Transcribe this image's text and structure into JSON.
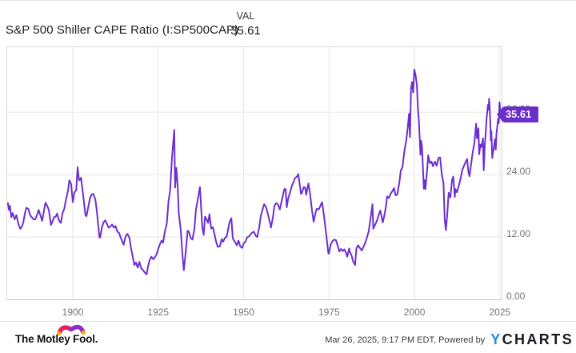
{
  "header": {
    "title": "S&P 500 Shiller CAPE Ratio (I:SP500CAP)",
    "val_label": "VAL",
    "val_value": "35.61"
  },
  "badge": {
    "value": "35.61",
    "color": "#6a2fc9"
  },
  "footer": {
    "brand": "The Motley Fool.",
    "timestamp": "Mar 26, 2025, 9:17 PM EDT",
    "powered_by": "Powered by",
    "ycharts_y": "Y",
    "ycharts_rest": "CHARTS"
  },
  "colors": {
    "line": "#6c2fd0",
    "badge": "#6a2fc9",
    "grid": "#e6e6e6",
    "axis_text": "#757575",
    "ycharts_blue": "#1e8fe3",
    "mf_cap_left": "#e61e5c",
    "mf_cap_right": "#8a30c9",
    "mf_bells": "#ffaf00"
  },
  "chart_data": {
    "type": "line",
    "title": "S&P 500 Shiller CAPE Ratio (I:SP500CAP)",
    "series_name": "S&P 500 Shiller CAPE Ratio",
    "line_color": "#6c2fd0",
    "grid": true,
    "legend": "none",
    "xlim": [
      1880.8,
      2025.5
    ],
    "ylim": [
      0,
      48.5
    ],
    "x_ticks": [
      1900,
      1925,
      1950,
      1975,
      2000,
      2025
    ],
    "x_tick_labels": [
      "1900",
      "1925",
      "1950",
      "1975",
      "2000",
      "2025"
    ],
    "y_ticks": [
      36,
      24,
      12,
      0
    ],
    "y_tick_labels": [
      "36.00",
      "24.00",
      "12.00",
      "0.00"
    ],
    "last_value": 35.61,
    "points": [
      [
        1881,
        18.5
      ],
      [
        1881.3,
        17.2
      ],
      [
        1881.6,
        18.0
      ],
      [
        1882,
        15.8
      ],
      [
        1882.4,
        16.6
      ],
      [
        1883,
        15.4
      ],
      [
        1883.5,
        16.2
      ],
      [
        1884,
        14.7
      ],
      [
        1884.6,
        13.6
      ],
      [
        1885,
        13.8
      ],
      [
        1885.5,
        14.8
      ],
      [
        1886,
        16.6
      ],
      [
        1886.4,
        17.6
      ],
      [
        1887,
        17.4
      ],
      [
        1887.5,
        16.2
      ],
      [
        1888,
        15.8
      ],
      [
        1888.5,
        15.4
      ],
      [
        1889,
        15.4
      ],
      [
        1889.5,
        16.2
      ],
      [
        1890,
        17.2
      ],
      [
        1890.7,
        15.8
      ],
      [
        1891,
        15.1
      ],
      [
        1891.5,
        16.8
      ],
      [
        1892,
        18.6
      ],
      [
        1892.5,
        18.0
      ],
      [
        1893,
        17.2
      ],
      [
        1893.6,
        14.3
      ],
      [
        1894,
        14.9
      ],
      [
        1894.5,
        15.8
      ],
      [
        1895,
        15.9
      ],
      [
        1895.4,
        16.5
      ],
      [
        1896,
        15.1
      ],
      [
        1896.5,
        14.7
      ],
      [
        1897,
        16.6
      ],
      [
        1897.5,
        17.4
      ],
      [
        1898,
        19.2
      ],
      [
        1898.6,
        20.9
      ],
      [
        1899,
        22.9
      ],
      [
        1899.5,
        22.2
      ],
      [
        1900,
        18.7
      ],
      [
        1900.5,
        20.6
      ],
      [
        1901,
        21.0
      ],
      [
        1901.4,
        25.4
      ],
      [
        1901.8,
        23.0
      ],
      [
        1902,
        22.9
      ],
      [
        1902.4,
        23.4
      ],
      [
        1903,
        20.2
      ],
      [
        1903.7,
        16.2
      ],
      [
        1904,
        16.0
      ],
      [
        1904.6,
        18.0
      ],
      [
        1905,
        19.4
      ],
      [
        1905.5,
        20.2
      ],
      [
        1906,
        20.3
      ],
      [
        1906.6,
        19.2
      ],
      [
        1907,
        17.2
      ],
      [
        1907.8,
        11.9
      ],
      [
        1908,
        11.9
      ],
      [
        1908.5,
        13.8
      ],
      [
        1909,
        14.8
      ],
      [
        1909.5,
        15.2
      ],
      [
        1910,
        14.5
      ],
      [
        1910.5,
        13.8
      ],
      [
        1911,
        14.0
      ],
      [
        1911.5,
        14.4
      ],
      [
        1912,
        13.8
      ],
      [
        1912.5,
        14.1
      ],
      [
        1913,
        13.1
      ],
      [
        1913.6,
        12.7
      ],
      [
        1914,
        11.9
      ],
      [
        1914.9,
        10.5
      ],
      [
        1915,
        10.9
      ],
      [
        1915.5,
        12.2
      ],
      [
        1916,
        12.6
      ],
      [
        1916.6,
        11.8
      ],
      [
        1917,
        10.0
      ],
      [
        1917.9,
        7.0
      ],
      [
        1918,
        6.6
      ],
      [
        1918.5,
        7.1
      ],
      [
        1919,
        6.1
      ],
      [
        1919.5,
        7.2
      ],
      [
        1920,
        6.0
      ],
      [
        1920.6,
        5.6
      ],
      [
        1921,
        5.2
      ],
      [
        1921.6,
        4.8
      ],
      [
        1922,
        6.3
      ],
      [
        1922.5,
        7.6
      ],
      [
        1923,
        8.2
      ],
      [
        1923.6,
        7.7
      ],
      [
        1924,
        8.1
      ],
      [
        1924.5,
        8.6
      ],
      [
        1925,
        9.7
      ],
      [
        1925.5,
        10.6
      ],
      [
        1926,
        11.3
      ],
      [
        1926.4,
        10.9
      ],
      [
        1927,
        13.2
      ],
      [
        1927.5,
        14.6
      ],
      [
        1928,
        18.8
      ],
      [
        1928.5,
        21.0
      ],
      [
        1929,
        27.1
      ],
      [
        1929.7,
        32.6
      ],
      [
        1929.95,
        21.5
      ],
      [
        1930.3,
        25.3
      ],
      [
        1930.7,
        21.8
      ],
      [
        1931,
        16.7
      ],
      [
        1931.6,
        13.3
      ],
      [
        1932,
        9.3
      ],
      [
        1932.5,
        5.6
      ],
      [
        1933,
        8.7
      ],
      [
        1933.6,
        13.2
      ],
      [
        1934,
        13.0
      ],
      [
        1934.5,
        11.8
      ],
      [
        1935,
        11.5
      ],
      [
        1935.6,
        13.5
      ],
      [
        1936,
        17.1
      ],
      [
        1936.8,
        20.1
      ],
      [
        1937.2,
        21.6
      ],
      [
        1937.9,
        13.8
      ],
      [
        1938.3,
        12.4
      ],
      [
        1938.7,
        15.9
      ],
      [
        1939,
        15.6
      ],
      [
        1939.6,
        14.7
      ],
      [
        1940,
        16.4
      ],
      [
        1940.5,
        13.6
      ],
      [
        1941,
        13.9
      ],
      [
        1941.9,
        11.2
      ],
      [
        1942.4,
        10.1
      ],
      [
        1943,
        10.2
      ],
      [
        1943.6,
        11.6
      ],
      [
        1944,
        11.1
      ],
      [
        1944.6,
        11.9
      ],
      [
        1945,
        12.0
      ],
      [
        1945.9,
        14.9
      ],
      [
        1946.4,
        15.6
      ],
      [
        1946.8,
        11.9
      ],
      [
        1947,
        11.5
      ],
      [
        1947.6,
        10.9
      ],
      [
        1948,
        10.4
      ],
      [
        1948.5,
        11.3
      ],
      [
        1949,
        10.2
      ],
      [
        1949.6,
        9.9
      ],
      [
        1950,
        10.7
      ],
      [
        1950.6,
        11.2
      ],
      [
        1951,
        11.9
      ],
      [
        1951.5,
        12.1
      ],
      [
        1952,
        12.5
      ],
      [
        1952.6,
        12.9
      ],
      [
        1953,
        13.0
      ],
      [
        1953.6,
        12.2
      ],
      [
        1954,
        12.0
      ],
      [
        1954.6,
        14.0
      ],
      [
        1955,
        16.0
      ],
      [
        1955.6,
        17.4
      ],
      [
        1956,
        18.3
      ],
      [
        1956.6,
        17.7
      ],
      [
        1957,
        16.7
      ],
      [
        1957.9,
        14.2
      ],
      [
        1958,
        13.8
      ],
      [
        1958.6,
        15.9
      ],
      [
        1959,
        18.0
      ],
      [
        1959.5,
        18.5
      ],
      [
        1960,
        18.3
      ],
      [
        1960.6,
        17.3
      ],
      [
        1961,
        18.5
      ],
      [
        1961.9,
        21.2
      ],
      [
        1962.3,
        21.2
      ],
      [
        1962.6,
        17.7
      ],
      [
        1963,
        19.3
      ],
      [
        1963.6,
        20.6
      ],
      [
        1964,
        21.6
      ],
      [
        1964.6,
        22.6
      ],
      [
        1965,
        23.3
      ],
      [
        1965.6,
        23.6
      ],
      [
        1966,
        24.1
      ],
      [
        1966.8,
        20.3
      ],
      [
        1967,
        20.4
      ],
      [
        1967.6,
        21.6
      ],
      [
        1968,
        21.5
      ],
      [
        1968.3,
        20.1
      ],
      [
        1968.95,
        22.3
      ],
      [
        1969.4,
        20.5
      ],
      [
        1970,
        17.1
      ],
      [
        1970.5,
        14.9
      ],
      [
        1971,
        16.5
      ],
      [
        1971.4,
        17.4
      ],
      [
        1972,
        17.3
      ],
      [
        1972.95,
        18.7
      ],
      [
        1973.5,
        16.2
      ],
      [
        1974,
        13.5
      ],
      [
        1974.8,
        8.8
      ],
      [
        1975,
        8.9
      ],
      [
        1975.5,
        10.6
      ],
      [
        1976,
        11.2
      ],
      [
        1976.5,
        11.5
      ],
      [
        1977,
        11.4
      ],
      [
        1977.6,
        10.2
      ],
      [
        1978,
        9.2
      ],
      [
        1978.5,
        9.7
      ],
      [
        1979,
        9.3
      ],
      [
        1979.5,
        9.6
      ],
      [
        1980,
        8.9
      ],
      [
        1980.3,
        8.2
      ],
      [
        1980.9,
        9.8
      ],
      [
        1981,
        9.3
      ],
      [
        1981.6,
        8.4
      ],
      [
        1982,
        7.4
      ],
      [
        1982.6,
        6.6
      ],
      [
        1983,
        9.8
      ],
      [
        1983.5,
        10.4
      ],
      [
        1984,
        9.9
      ],
      [
        1984.6,
        9.4
      ],
      [
        1985,
        10.0
      ],
      [
        1985.6,
        10.9
      ],
      [
        1986,
        11.7
      ],
      [
        1986.6,
        13.1
      ],
      [
        1987,
        14.9
      ],
      [
        1987.7,
        18.3
      ],
      [
        1987.95,
        13.6
      ],
      [
        1988.3,
        14.1
      ],
      [
        1989,
        15.1
      ],
      [
        1989.6,
        16.4
      ],
      [
        1990,
        17.1
      ],
      [
        1990.7,
        14.8
      ],
      [
        1991,
        15.6
      ],
      [
        1991.6,
        17.6
      ],
      [
        1992,
        19.8
      ],
      [
        1992.5,
        19.5
      ],
      [
        1993,
        20.3
      ],
      [
        1993.6,
        20.9
      ],
      [
        1994,
        21.4
      ],
      [
        1994.5,
        20.0
      ],
      [
        1995,
        20.2
      ],
      [
        1995.6,
        22.6
      ],
      [
        1996,
        24.8
      ],
      [
        1996.5,
        25.4
      ],
      [
        1997,
        28.3
      ],
      [
        1997.6,
        30.6
      ],
      [
        1998,
        32.9
      ],
      [
        1998.4,
        35.7
      ],
      [
        1998.7,
        31.2
      ],
      [
        1999,
        40.6
      ],
      [
        1999.3,
        41.8
      ],
      [
        1999.6,
        39.8
      ],
      [
        1999.95,
        44.2
      ],
      [
        2000.3,
        43.2
      ],
      [
        2000.7,
        41.2
      ],
      [
        2001,
        36.8
      ],
      [
        2001.3,
        34.3
      ],
      [
        2001.75,
        27.8
      ],
      [
        2001.95,
        30.5
      ],
      [
        2002.2,
        29.4
      ],
      [
        2002.75,
        21.3
      ],
      [
        2003,
        22.9
      ],
      [
        2003.2,
        21.2
      ],
      [
        2003.8,
        25.6
      ],
      [
        2004,
        27.7
      ],
      [
        2004.5,
        26.2
      ],
      [
        2005,
        26.5
      ],
      [
        2005.4,
        25.6
      ],
      [
        2006,
        26.5
      ],
      [
        2006.5,
        25.7
      ],
      [
        2007,
        27.2
      ],
      [
        2007.5,
        27.3
      ],
      [
        2008,
        24.0
      ],
      [
        2008.5,
        22.3
      ],
      [
        2008.85,
        15.3
      ],
      [
        2009.2,
        13.3
      ],
      [
        2009.6,
        16.4
      ],
      [
        2010,
        20.5
      ],
      [
        2010.5,
        19.6
      ],
      [
        2011,
        23.0
      ],
      [
        2011.35,
        23.6
      ],
      [
        2011.8,
        19.7
      ],
      [
        2012,
        21.2
      ],
      [
        2012.4,
        20.6
      ],
      [
        2013,
        21.9
      ],
      [
        2013.5,
        23.2
      ],
      [
        2014,
        24.9
      ],
      [
        2014.5,
        25.7
      ],
      [
        2015,
        26.5
      ],
      [
        2015.4,
        27.0
      ],
      [
        2015.75,
        24.6
      ],
      [
        2016.1,
        23.7
      ],
      [
        2016.5,
        25.7
      ],
      [
        2017,
        28.1
      ],
      [
        2017.5,
        29.9
      ],
      [
        2018.05,
        33.8
      ],
      [
        2018.3,
        31.0
      ],
      [
        2018.7,
        32.9
      ],
      [
        2018.95,
        27.9
      ],
      [
        2019.3,
        29.8
      ],
      [
        2019.6,
        29.3
      ],
      [
        2020.05,
        31.0
      ],
      [
        2020.25,
        24.8
      ],
      [
        2020.6,
        29.9
      ],
      [
        2020.9,
        32.6
      ],
      [
        2021.1,
        34.7
      ],
      [
        2021.5,
        37.4
      ],
      [
        2021.7,
        36.5
      ],
      [
        2021.85,
        38.6
      ],
      [
        2022.0,
        36.9
      ],
      [
        2022.2,
        33.8
      ],
      [
        2022.35,
        30.6
      ],
      [
        2022.5,
        32.4
      ],
      [
        2022.75,
        27.2
      ],
      [
        2023.0,
        28.3
      ],
      [
        2023.3,
        29.5
      ],
      [
        2023.55,
        30.8
      ],
      [
        2023.8,
        28.8
      ],
      [
        2024.0,
        31.9
      ],
      [
        2024.25,
        33.4
      ],
      [
        2024.5,
        34.8
      ],
      [
        2024.65,
        33.9
      ],
      [
        2024.9,
        37.9
      ],
      [
        2025.0,
        37.2
      ],
      [
        2025.1,
        35.2
      ],
      [
        2025.22,
        35.61
      ]
    ]
  }
}
